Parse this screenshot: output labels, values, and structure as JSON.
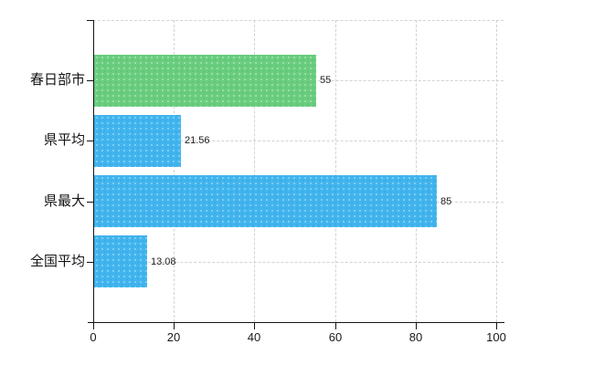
{
  "chart_data": {
    "type": "bar",
    "orientation": "horizontal",
    "title": "",
    "xlabel": "",
    "ylabel": "",
    "categories": [
      "春日部市",
      "県平均",
      "県最大",
      "全国平均"
    ],
    "values": [
      55,
      21.56,
      85,
      13.08
    ],
    "value_labels": [
      "55",
      "21.56",
      "85",
      "13.08"
    ],
    "bar_colors": [
      "#69cd7d",
      "#41b4ee",
      "#41b4ee",
      "#41b4ee"
    ],
    "x_ticks": [
      0,
      20,
      40,
      60,
      80,
      100
    ],
    "x_tick_labels": [
      "0",
      "20",
      "40",
      "60",
      "80",
      "100"
    ],
    "xlim": [
      0,
      100
    ],
    "grid": true,
    "legend": false
  },
  "style": {
    "background": "#ffffff",
    "axis_color": "#141414",
    "grid_color": "#d2d2d2",
    "category_label_color": "#141414",
    "value_label_color": "#1a1a1a",
    "tick_label_color": "#1a1a1a"
  }
}
